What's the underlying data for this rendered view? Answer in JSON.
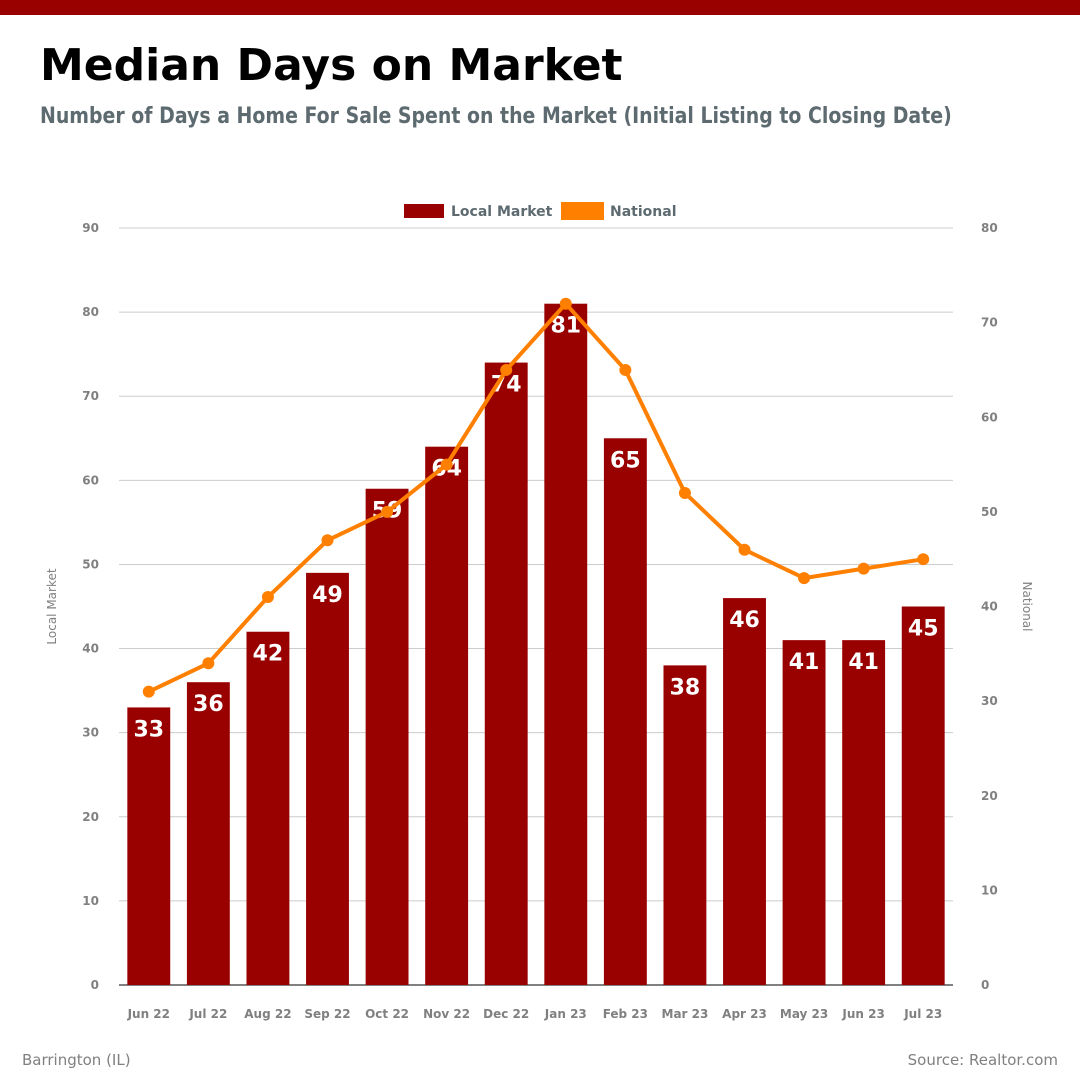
{
  "header": {
    "title": "Median Days on Market",
    "subtitle": "Number of Days a Home For Sale Spent on the Market (Initial Listing to Closing Date)"
  },
  "footer": {
    "location": "Barrington (IL)",
    "source": "Source: Realtor.com"
  },
  "colors": {
    "bar": "#990000",
    "line": "#ff8000",
    "grid": "#cccccc",
    "axis_text": "#808080",
    "legend_text": "#5d6b70"
  },
  "chart_data": {
    "type": "bar",
    "categories": [
      "Jun 22",
      "Jul 22",
      "Aug 22",
      "Sep 22",
      "Oct 22",
      "Nov 22",
      "Dec 22",
      "Jan 23",
      "Feb 23",
      "Mar 23",
      "Apr 23",
      "May 23",
      "Jun 23",
      "Jul 23"
    ],
    "series": [
      {
        "name": "Local Market",
        "type": "bar",
        "axis": "left",
        "values": [
          33,
          36,
          42,
          49,
          59,
          64,
          74,
          81,
          65,
          38,
          46,
          41,
          41,
          45
        ]
      },
      {
        "name": "National",
        "type": "line",
        "axis": "right",
        "values": [
          31,
          34,
          41,
          47,
          50,
          55,
          65,
          72,
          65,
          52,
          46,
          43,
          44,
          45
        ]
      }
    ],
    "ylabel": "Local Market",
    "y2label": "National",
    "ylim": [
      0,
      90
    ],
    "y2lim": [
      0,
      80
    ],
    "yticks": [
      0,
      10,
      20,
      30,
      40,
      50,
      60,
      70,
      80,
      90
    ],
    "y2ticks": [
      0,
      10,
      20,
      30,
      40,
      50,
      60,
      70,
      80
    ],
    "legend_position": "top-center",
    "grid": true
  }
}
